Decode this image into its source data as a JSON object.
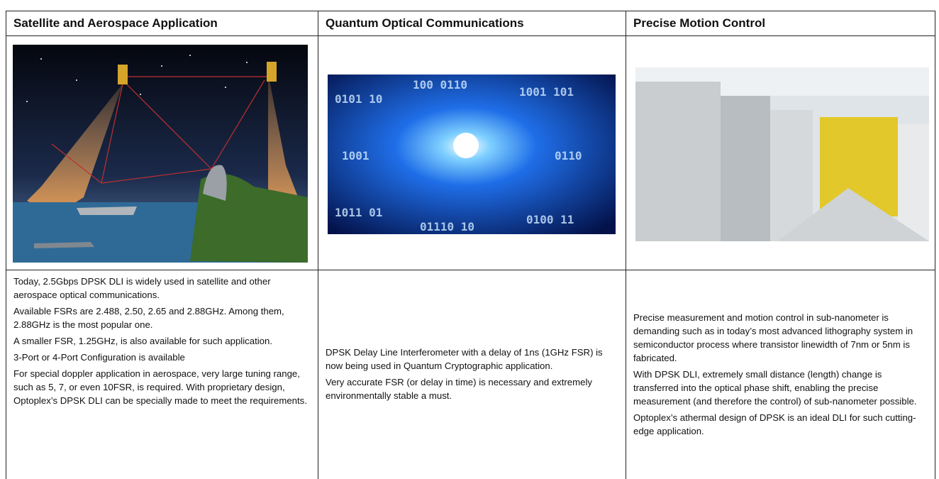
{
  "table": {
    "headers": [
      "Satellite and Aerospace Application",
      "Quantum Optical Communications",
      "Precise Motion Control"
    ],
    "columns": [
      {
        "paragraphs": [
          "Today, 2.5Gbps DPSK DLI is widely used in satellite and other aerospace optical communications.",
          "Available FSRs are 2.488, 2.50, 2.65 and 2.88GHz. Among them, 2.88GHz is the most popular one.",
          "A smaller FSR, 1.25GHz, is also available for such application.",
          "3-Port or 4-Port Configuration is available",
          "For special doppler application in aerospace, very large tuning range, such as 5, 7, or even 10FSR, is required. With proprietary design, Optoplex’s DPSK DLI can be specially made to meet the requirements."
        ]
      },
      {
        "paragraphs": [
          "DPSK Delay Line Interferometer with a delay of 1ns (1GHz FSR) is now being used in Quantum Cryptographic application.",
          "Very accurate FSR (or delay in time) is necessary and extremely environmentally stable a must."
        ]
      },
      {
        "paragraphs": [
          "Precise measurement and motion control in sub-nanometer is demanding such as in today’s most advanced lithography system in semiconductor process where transistor linewidth of 7nm or 5nm is fabricated.",
          "With DPSK DLI, extremely small distance (length) change is transferred into the optical phase shift, enabling the precise measurement (and therefore the control) of sub-nanometer possible.",
          "Optoplex’s athermal design of DPSK is an ideal DLI for such cutting-edge application."
        ]
      }
    ]
  }
}
